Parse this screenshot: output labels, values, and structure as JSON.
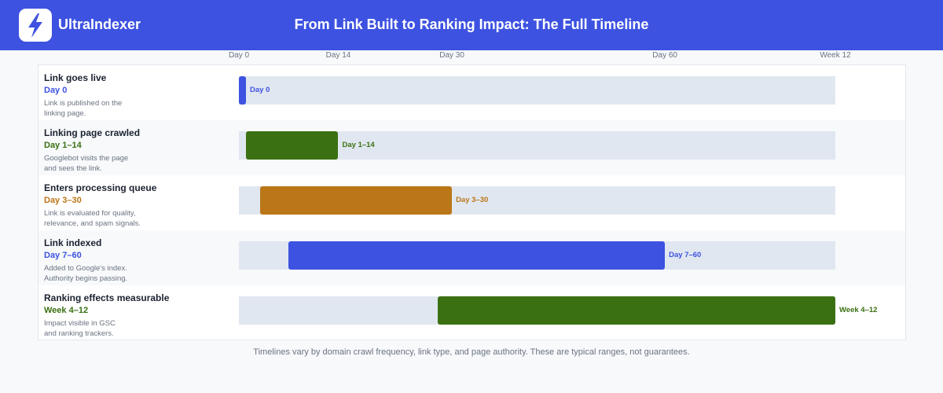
{
  "header": {
    "brand": "UltraIndexer",
    "title": "From Link Built to Ranking Impact: The Full Timeline",
    "logo_icon": "lightning-bolt-icon"
  },
  "colors": {
    "header_bg": "#3d52e0",
    "blue": "#3d52e0",
    "green": "#3a7012",
    "orange": "#bb7618",
    "track": "#e1e7f0"
  },
  "chart_data": {
    "type": "gantt",
    "x_unit": "days",
    "xlim": [
      0,
      84
    ],
    "ticks": [
      {
        "label": "Day 0",
        "value": 0
      },
      {
        "label": "Day 14",
        "value": 14
      },
      {
        "label": "Day 30",
        "value": 30
      },
      {
        "label": "Day 60",
        "value": 60
      },
      {
        "label": "Week 12",
        "value": 84
      }
    ],
    "rows": [
      {
        "name": "Link goes live",
        "range": "Day 0",
        "desc_lines": [
          "Link is published on the",
          "linking page."
        ],
        "start": 0,
        "end": 0,
        "color": "#3d52e0"
      },
      {
        "name": "Linking page crawled",
        "range": "Day 1–14",
        "desc_lines": [
          "Googlebot visits the page",
          "and sees the link."
        ],
        "start": 1,
        "end": 14,
        "color": "#3a7012"
      },
      {
        "name": "Enters processing queue",
        "range": "Day 3–30",
        "desc_lines": [
          "Link is evaluated for quality,",
          "relevance, and spam signals."
        ],
        "start": 3,
        "end": 30,
        "color": "#bb7618"
      },
      {
        "name": "Link indexed",
        "range": "Day 7–60",
        "desc_lines": [
          "Added to Google's index.",
          "Authority begins passing."
        ],
        "start": 7,
        "end": 60,
        "color": "#3d52e0"
      },
      {
        "name": "Ranking effects measurable",
        "range": "Week 4–12",
        "desc_lines": [
          "Impact visible in GSC",
          "and ranking trackers."
        ],
        "start": 28,
        "end": 84,
        "color": "#3a7012"
      }
    ],
    "grid": false,
    "legend": "none"
  },
  "footnote": "Timelines vary by domain crawl frequency, link type, and page authority. These are typical ranges, not guarantees."
}
